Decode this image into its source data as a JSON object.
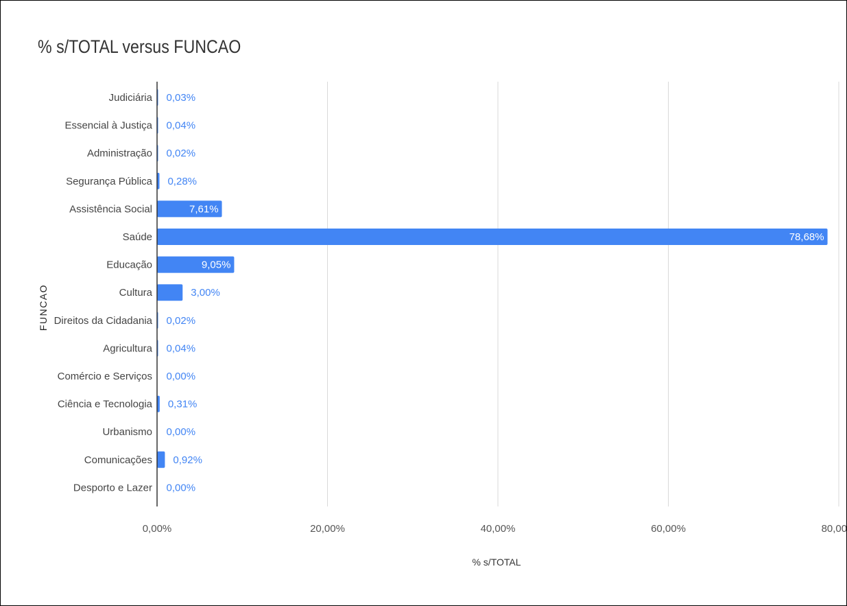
{
  "chart_data": {
    "type": "bar",
    "orientation": "horizontal",
    "title": "% s/TOTAL versus FUNCAO",
    "xlabel": "% s/TOTAL",
    "ylabel": "FUNCAO",
    "xlim": [
      0,
      80
    ],
    "xticks": [
      "0,00%",
      "20,00%",
      "40,00%",
      "60,00%",
      "80,00%"
    ],
    "categories": [
      "Judiciária",
      "Essencial à Justiça",
      "Administração",
      "Segurança Pública",
      "Assistência Social",
      "Saúde",
      "Educação",
      "Cultura",
      "Direitos da Cidadania",
      "Agricultura",
      "Comércio e Serviços",
      "Ciência e Tecnologia",
      "Urbanismo",
      "Comunicações",
      "Desporto e Lazer"
    ],
    "values": [
      0.03,
      0.04,
      0.02,
      0.28,
      7.61,
      78.68,
      9.05,
      3.0,
      0.02,
      0.04,
      0.0,
      0.31,
      0.0,
      0.92,
      0.0
    ],
    "value_labels": [
      "0,03%",
      "0,04%",
      "0,02%",
      "0,28%",
      "7,61%",
      "78,68%",
      "9,05%",
      "3,00%",
      "0,02%",
      "0,04%",
      "0,00%",
      "0,31%",
      "0,00%",
      "0,92%",
      "0,00%"
    ],
    "grid": "vertical",
    "legend": "none",
    "colors": {
      "bar": "#4285f4",
      "gridline": "#d9d9d9",
      "axis": "#333333"
    }
  }
}
